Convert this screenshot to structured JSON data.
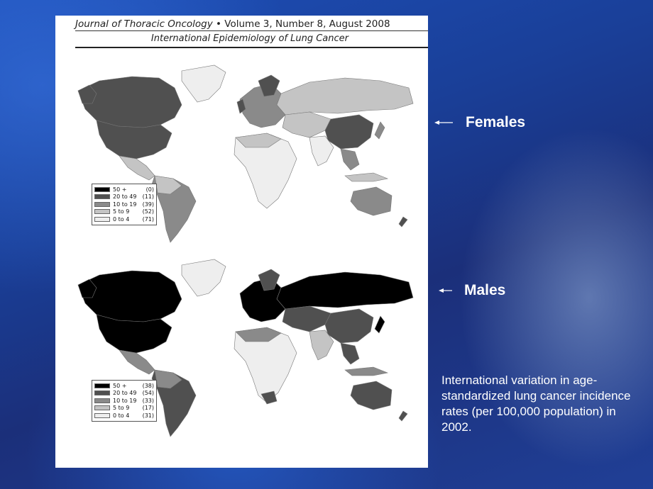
{
  "journal_header": {
    "journal": "Journal of Thoracic Oncology",
    "bullet": "•",
    "issue": "Volume 3, Number 8, August 2008"
  },
  "section_title": "International Epidemiology of Lung Cancer",
  "maps": [
    {
      "label": "Females",
      "legend": [
        {
          "range": "50 +",
          "count": "(0)",
          "color": "#000000"
        },
        {
          "range": "20 to 49",
          "count": "(11)",
          "color": "#505050"
        },
        {
          "range": "10 to 19",
          "count": "(39)",
          "color": "#8a8a8a"
        },
        {
          "range": "5 to 9",
          "count": "(52)",
          "color": "#c4c4c4"
        },
        {
          "range": "0 to 4",
          "count": "(71)",
          "color": "#eeeeee"
        }
      ]
    },
    {
      "label": "Males",
      "legend": [
        {
          "range": "50 +",
          "count": "(38)",
          "color": "#000000"
        },
        {
          "range": "20 to 49",
          "count": "(54)",
          "color": "#505050"
        },
        {
          "range": "10 to 19",
          "count": "(33)",
          "color": "#8a8a8a"
        },
        {
          "range": "5 to 9",
          "count": "(17)",
          "color": "#c4c4c4"
        },
        {
          "range": "0 to 4",
          "count": "(31)",
          "color": "#eeeeee"
        }
      ]
    }
  ],
  "caption": "International variation in age-standardized lung cancer incidence rates (per 100,000 population) in 2002."
}
